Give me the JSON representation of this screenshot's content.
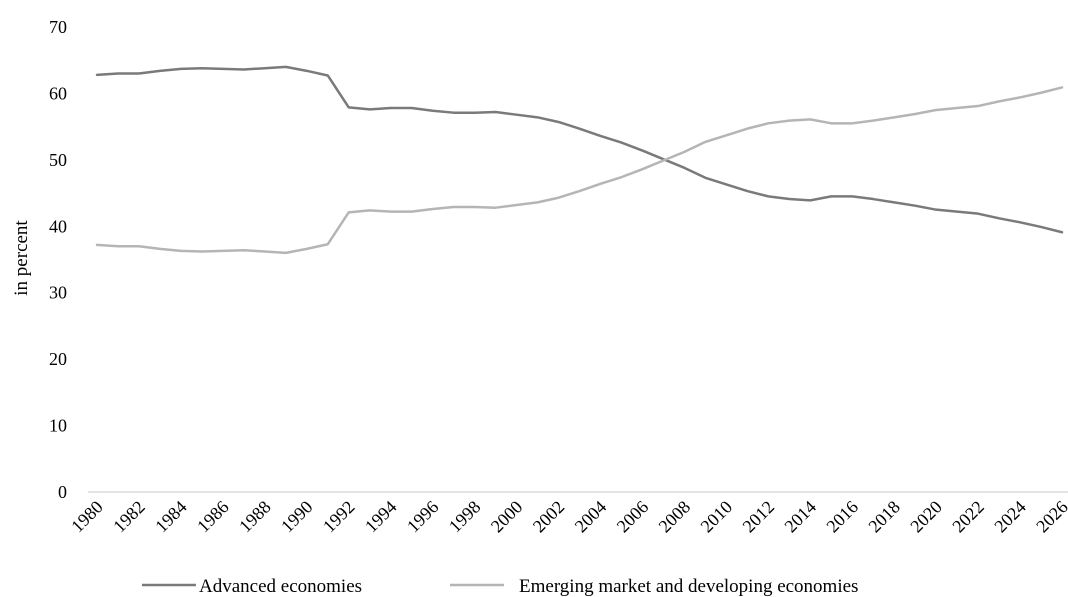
{
  "chart_data": {
    "type": "line",
    "title": "",
    "xlabel": "",
    "ylabel": "in percent",
    "ylim": [
      0,
      70
    ],
    "yticks": [
      0,
      10,
      20,
      30,
      40,
      50,
      60,
      70
    ],
    "grid": false,
    "legend_position": "bottom",
    "x": [
      1980,
      1981,
      1982,
      1983,
      1984,
      1985,
      1986,
      1987,
      1988,
      1989,
      1990,
      1991,
      1992,
      1993,
      1994,
      1995,
      1996,
      1997,
      1998,
      1999,
      2000,
      2001,
      2002,
      2003,
      2004,
      2005,
      2006,
      2007,
      2008,
      2009,
      2010,
      2011,
      2012,
      2013,
      2014,
      2015,
      2016,
      2017,
      2018,
      2019,
      2020,
      2021,
      2022,
      2023,
      2024,
      2025,
      2026
    ],
    "xtick_labels": [
      "1980",
      "1982",
      "1984",
      "1986",
      "1988",
      "1990",
      "1992",
      "1994",
      "1996",
      "1998",
      "2000",
      "2002",
      "2004",
      "2006",
      "2008",
      "2010",
      "2012",
      "2014",
      "2016",
      "2018",
      "2020",
      "2022",
      "2024",
      "2026"
    ],
    "series": [
      {
        "name": "Advanced economies",
        "color": "#7a7a7a",
        "values": [
          62.8,
          63.0,
          63.0,
          63.4,
          63.7,
          63.8,
          63.7,
          63.6,
          63.8,
          64.0,
          63.4,
          62.7,
          57.9,
          57.6,
          57.8,
          57.8,
          57.4,
          57.1,
          57.1,
          57.2,
          56.8,
          56.4,
          55.7,
          54.7,
          53.6,
          52.6,
          51.4,
          50.1,
          48.8,
          47.3,
          46.3,
          45.3,
          44.5,
          44.1,
          43.9,
          44.5,
          44.5,
          44.1,
          43.6,
          43.1,
          42.5,
          42.2,
          41.9,
          41.2,
          40.6,
          39.9,
          39.1
        ]
      },
      {
        "name": "Emerging market and developing economies",
        "color": "#b5b5b5",
        "values": [
          37.2,
          37.0,
          37.0,
          36.6,
          36.3,
          36.2,
          36.3,
          36.4,
          36.2,
          36.0,
          36.6,
          37.3,
          42.1,
          42.4,
          42.2,
          42.2,
          42.6,
          42.9,
          42.9,
          42.8,
          43.2,
          43.6,
          44.3,
          45.3,
          46.4,
          47.4,
          48.6,
          49.9,
          51.2,
          52.7,
          53.7,
          54.7,
          55.5,
          55.9,
          56.1,
          55.5,
          55.5,
          55.9,
          56.4,
          56.9,
          57.5,
          57.8,
          58.1,
          58.8,
          59.4,
          60.1,
          60.9
        ]
      }
    ]
  }
}
